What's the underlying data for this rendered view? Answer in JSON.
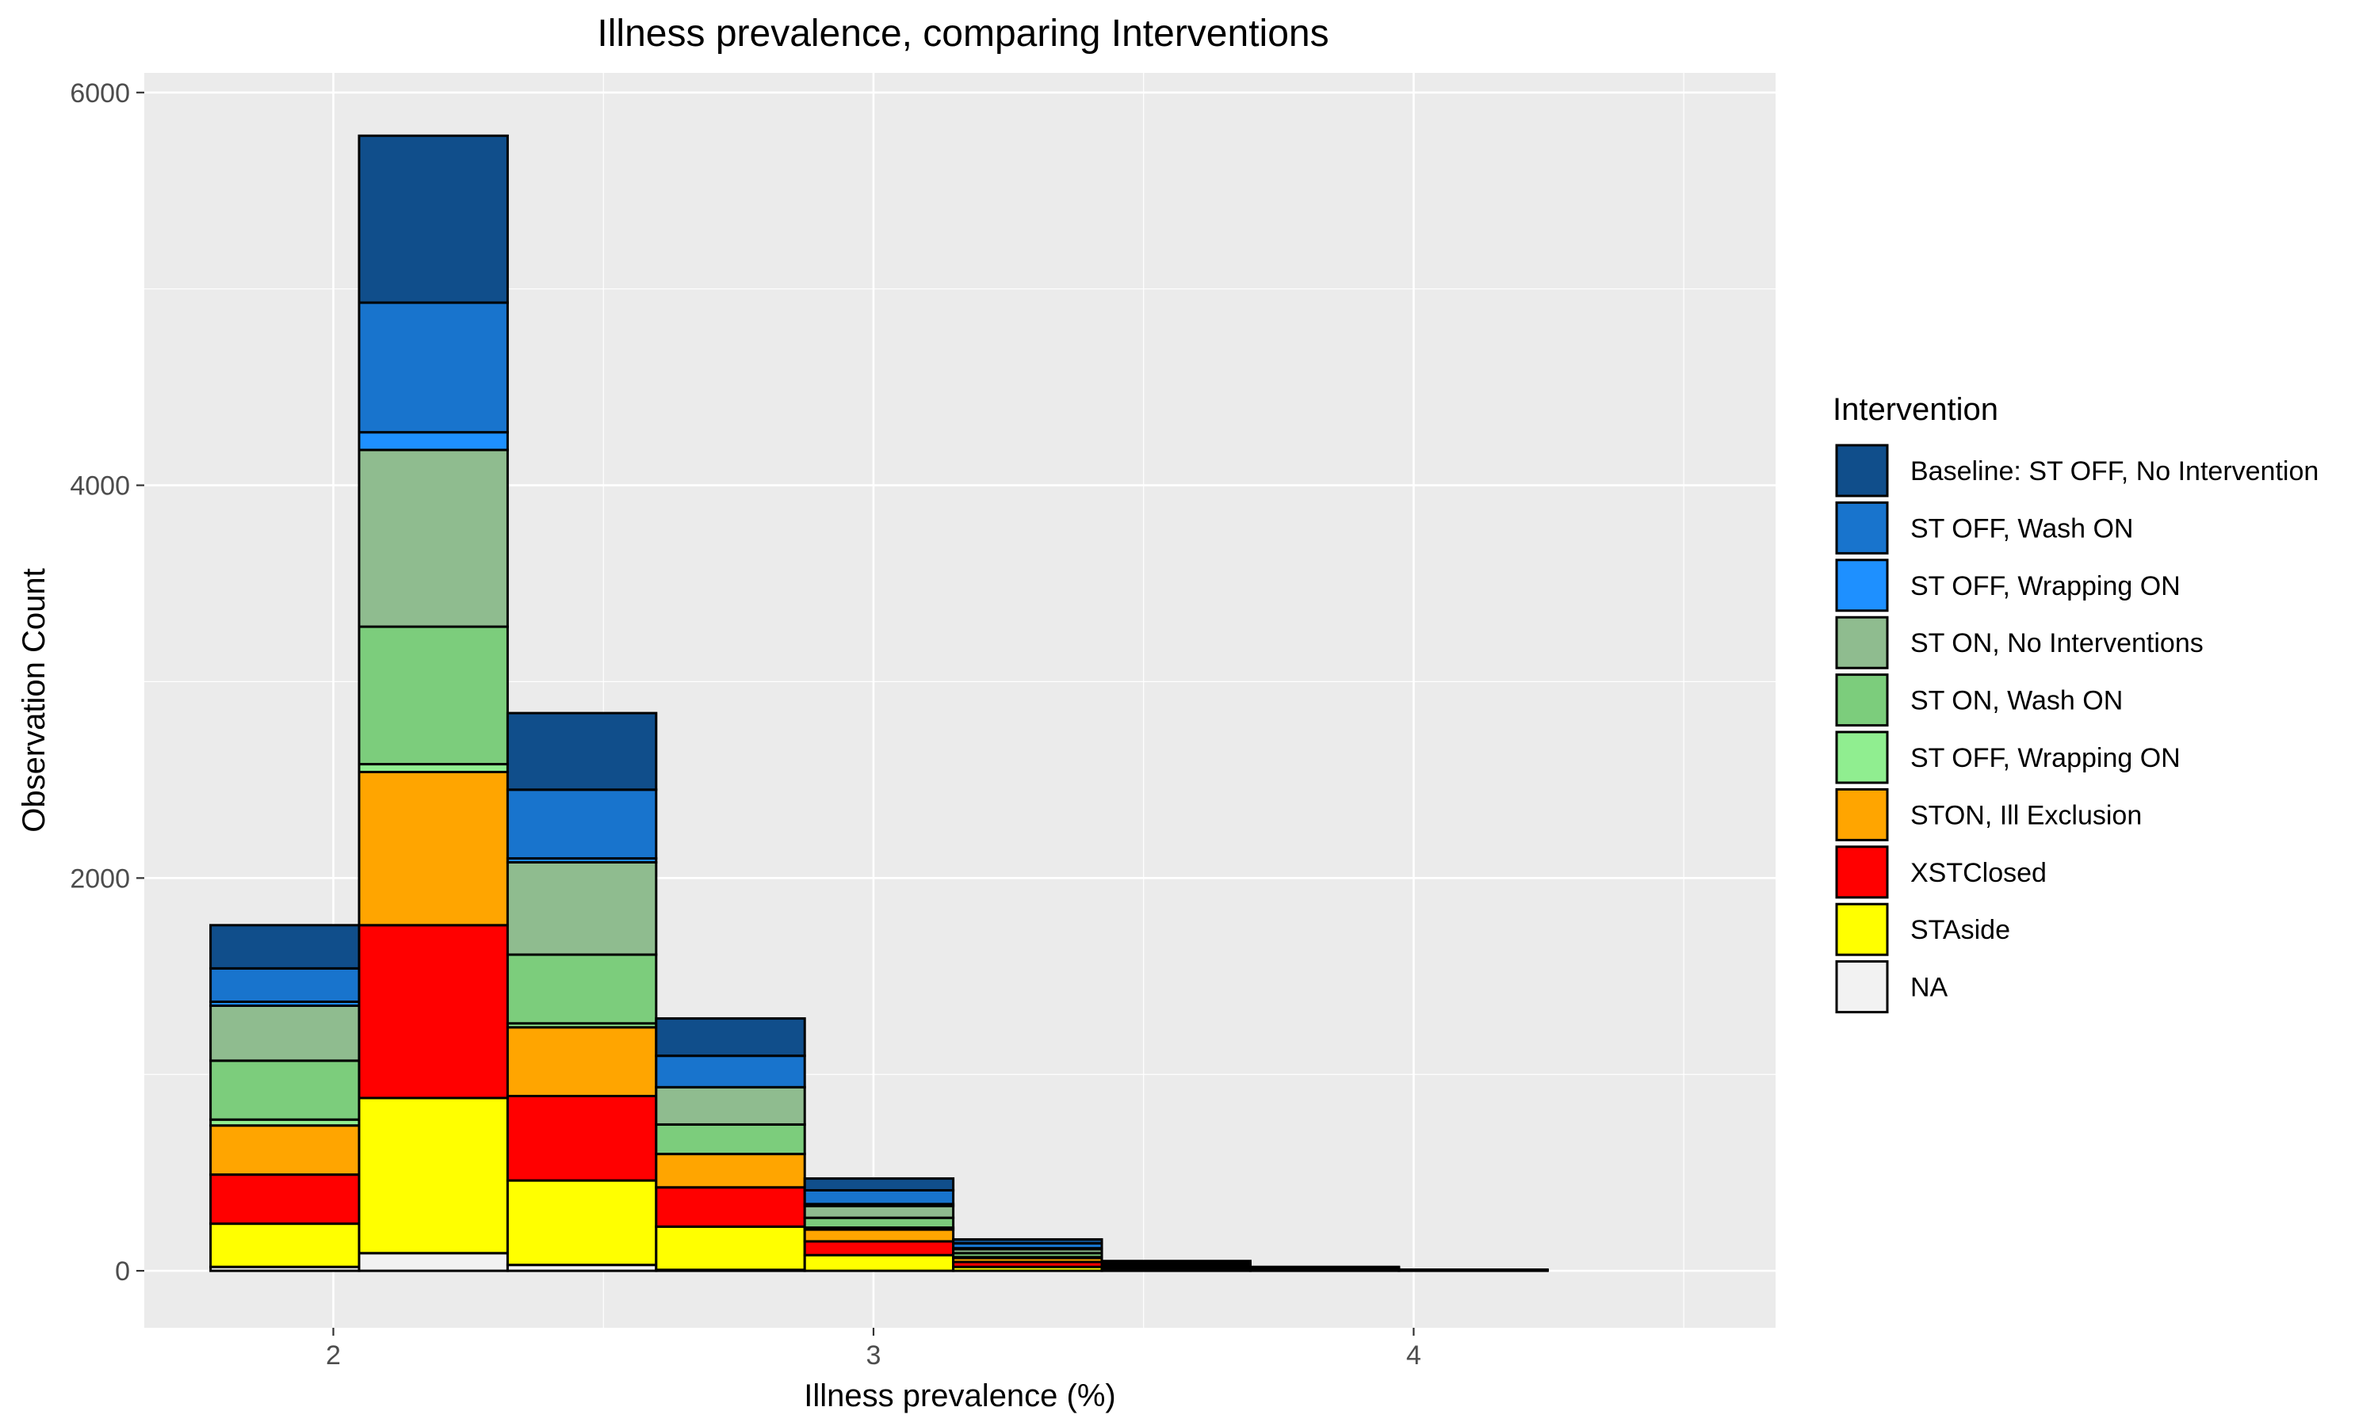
{
  "chart_data": {
    "type": "bar",
    "stacked": true,
    "title": "Illness prevalence, comparing Interventions",
    "xlabel": "Illness prevalence (%)",
    "ylabel": "Observation Count",
    "xlim": [
      1.65,
      4.67
    ],
    "ylim": [
      -290,
      6100
    ],
    "x_ticks": [
      2,
      3,
      4
    ],
    "y_ticks": [
      0,
      2000,
      4000,
      6000
    ],
    "grid": true,
    "legend_title": "Intervention",
    "legend_position": "right",
    "bin_edges": [
      1.7727,
      2.0477,
      2.3227,
      2.5977,
      2.8727,
      3.1477,
      3.4227,
      3.6977,
      3.9727,
      4.2477,
      4.5227
    ],
    "series": [
      {
        "name": "NA",
        "color": "#f2f2f2",
        "values": [
          20,
          90,
          30,
          5,
          0,
          0,
          0,
          0,
          0,
          0
        ]
      },
      {
        "name": "STAside",
        "color": "#ffff00",
        "values": [
          220,
          790,
          430,
          220,
          80,
          20,
          5,
          2,
          0,
          0
        ]
      },
      {
        "name": "XSTClosed",
        "color": "#ff0000",
        "values": [
          250,
          880,
          430,
          200,
          70,
          25,
          8,
          3,
          1,
          0
        ]
      },
      {
        "name": "STON, Ill Exclusion",
        "color": "#ffa500",
        "values": [
          250,
          780,
          350,
          170,
          60,
          20,
          6,
          3,
          1,
          0
        ]
      },
      {
        "name": "ST OFF, Wrapping ON",
        "color": "#90ee90",
        "values": [
          30,
          40,
          20,
          0,
          10,
          5,
          2,
          1,
          0,
          0
        ]
      },
      {
        "name": "ST ON, Wash ON",
        "color": "#7ccd7c",
        "values": [
          300,
          700,
          350,
          150,
          50,
          20,
          5,
          2,
          1,
          0
        ]
      },
      {
        "name": "ST ON, No Interventions",
        "color": "#8fbc8f",
        "values": [
          280,
          900,
          470,
          190,
          60,
          20,
          6,
          2,
          1,
          0
        ]
      },
      {
        "name": "ST OFF, Wrapping ON",
        "color": "#1e90ff",
        "values": [
          20,
          90,
          20,
          0,
          10,
          5,
          2,
          1,
          0,
          0
        ]
      },
      {
        "name": "ST OFF, Wash ON",
        "color": "#1874cd",
        "values": [
          170,
          660,
          350,
          160,
          70,
          25,
          8,
          3,
          1,
          0
        ]
      },
      {
        "name": "Baseline: ST OFF, No Intervention",
        "color": "#104e8b",
        "values": [
          220,
          850,
          390,
          190,
          60,
          20,
          8,
          3,
          1,
          0
        ]
      }
    ]
  }
}
